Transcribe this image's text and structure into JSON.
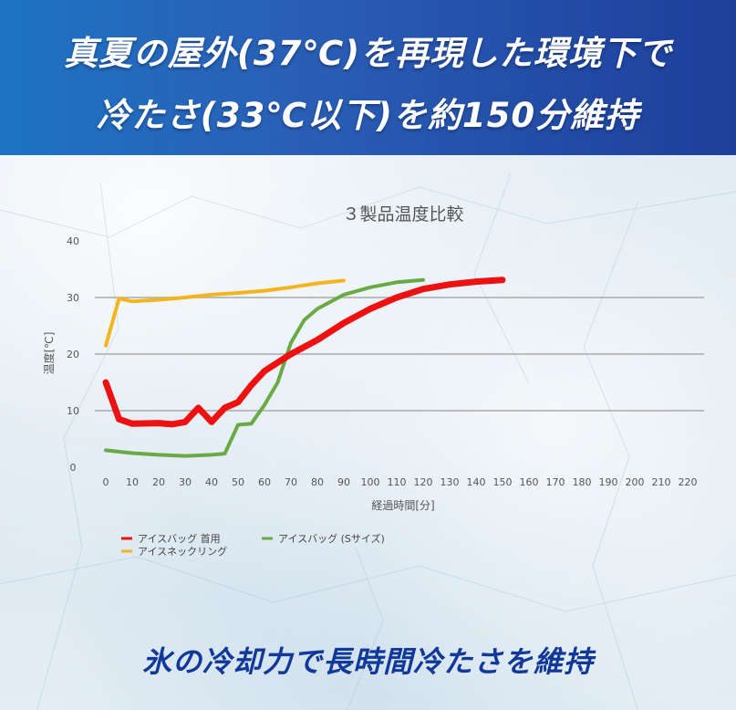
{
  "header": {
    "line1": "真夏の屋外(37℃)を再現した環境下で",
    "line2": "冷たさ(33℃以下)を約150分維持"
  },
  "footer": {
    "tagline": "氷の冷却力で長時間冷たさを維持"
  },
  "colors": {
    "banner": "#1f5fb5",
    "tagline": "#12389a"
  },
  "chart_data": {
    "type": "line",
    "title": "３製品温度比較",
    "xlabel": "経過時間[分]",
    "ylabel": "温度[℃]",
    "xlim": [
      0,
      220
    ],
    "ylim": [
      0,
      40
    ],
    "xticks": [
      0,
      10,
      20,
      30,
      40,
      50,
      60,
      70,
      80,
      90,
      100,
      110,
      120,
      130,
      140,
      150,
      160,
      170,
      180,
      190,
      200,
      210,
      220
    ],
    "yticks": [
      0,
      10,
      20,
      30,
      40
    ],
    "grid": "horizontal",
    "legend_position": "bottom-left",
    "series": [
      {
        "name": "アイスバッグ 首用",
        "color": "#ee1111",
        "points": [
          [
            0,
            15
          ],
          [
            5,
            8.5
          ],
          [
            10,
            7.7
          ],
          [
            20,
            7.8
          ],
          [
            25,
            7.6
          ],
          [
            30,
            8
          ],
          [
            35,
            10.5
          ],
          [
            40,
            8
          ],
          [
            45,
            10.5
          ],
          [
            50,
            11.5
          ],
          [
            55,
            14.5
          ],
          [
            60,
            17
          ],
          [
            70,
            20
          ],
          [
            80,
            22.5
          ],
          [
            90,
            25.5
          ],
          [
            100,
            28
          ],
          [
            110,
            30
          ],
          [
            120,
            31.5
          ],
          [
            130,
            32.3
          ],
          [
            140,
            32.8
          ],
          [
            150,
            33.1
          ]
        ]
      },
      {
        "name": "アイスバッグ (Sサイズ)",
        "color": "#6aaa45",
        "points": [
          [
            0,
            3
          ],
          [
            10,
            2.5
          ],
          [
            20,
            2.2
          ],
          [
            30,
            2
          ],
          [
            40,
            2.2
          ],
          [
            45,
            2.4
          ],
          [
            50,
            7.5
          ],
          [
            55,
            7.7
          ],
          [
            60,
            11
          ],
          [
            65,
            15
          ],
          [
            70,
            22
          ],
          [
            75,
            26
          ],
          [
            80,
            28
          ],
          [
            90,
            30.5
          ],
          [
            100,
            31.8
          ],
          [
            110,
            32.7
          ],
          [
            120,
            33.1
          ]
        ]
      },
      {
        "name": "アイスネックリング",
        "color": "#f2b51d",
        "points": [
          [
            0,
            21.5
          ],
          [
            5,
            29.8
          ],
          [
            10,
            29.3
          ],
          [
            20,
            29.6
          ],
          [
            30,
            30
          ],
          [
            40,
            30.5
          ],
          [
            50,
            30.8
          ],
          [
            60,
            31.2
          ],
          [
            70,
            31.8
          ],
          [
            80,
            32.5
          ],
          [
            90,
            33
          ]
        ]
      }
    ]
  }
}
